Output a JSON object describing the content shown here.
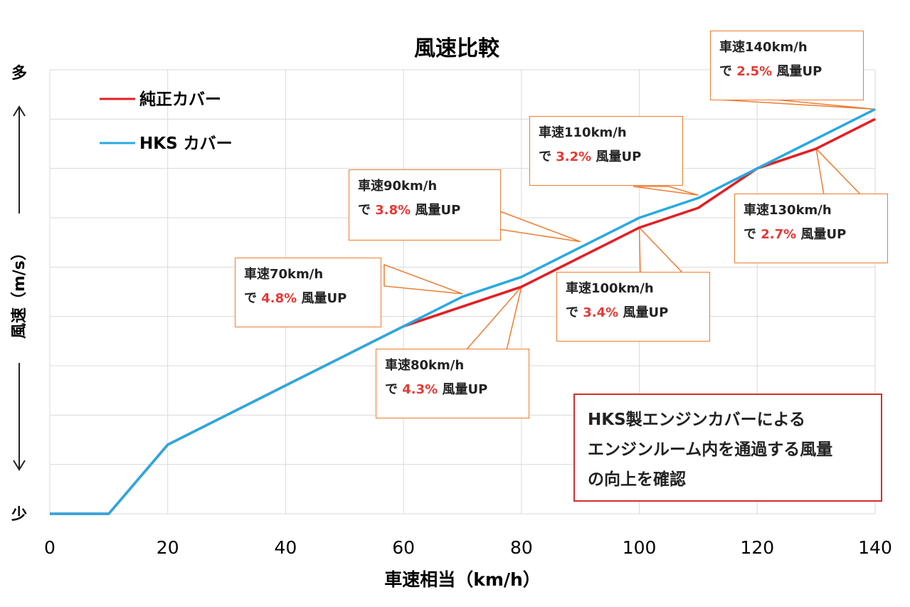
{
  "chart_data": {
    "type": "line",
    "title": "風速比較",
    "xlabel": "車速相当（km/h）",
    "ylabel": "風速（m/s）",
    "y_top_label": "多",
    "y_bottom_label": "少",
    "xlim": [
      0,
      140
    ],
    "x_ticks": [
      0,
      20,
      40,
      60,
      80,
      100,
      120,
      140
    ],
    "ylim": [
      0,
      9
    ],
    "grid": true,
    "legend_position": "top-left",
    "series": [
      {
        "name": "純正カバー",
        "color": "#e31e24",
        "x": [
          0,
          10,
          20,
          30,
          40,
          50,
          60,
          70,
          80,
          90,
          100,
          110,
          120,
          130,
          140
        ],
        "y": [
          0,
          0,
          1.4,
          2.0,
          2.6,
          3.2,
          3.8,
          4.2,
          4.6,
          5.2,
          5.8,
          6.2,
          7.0,
          7.4,
          8.0
        ]
      },
      {
        "name": "HKS カバー",
        "color": "#29a9e1",
        "x": [
          0,
          10,
          20,
          30,
          40,
          50,
          60,
          70,
          80,
          90,
          100,
          110,
          120,
          130,
          140
        ],
        "y": [
          0,
          0,
          1.4,
          2.0,
          2.6,
          3.2,
          3.8,
          4.4,
          4.8,
          5.4,
          6.0,
          6.4,
          7.0,
          7.6,
          8.2
        ]
      }
    ],
    "annotations": [
      {
        "line1": "車速70km/h",
        "prefix": "で ",
        "pct": "4.8%",
        "suffix": " 風量UP"
      },
      {
        "line1": "車速80km/h",
        "prefix": "で ",
        "pct": "4.3%",
        "suffix": " 風量UP"
      },
      {
        "line1": "車速90km/h",
        "prefix": "で ",
        "pct": "3.8%",
        "suffix": " 風量UP"
      },
      {
        "line1": "車速100km/h",
        "prefix": "で ",
        "pct": "3.4%",
        "suffix": " 風量UP"
      },
      {
        "line1": "車速110km/h",
        "prefix": "で ",
        "pct": "3.2%",
        "suffix": " 風量UP"
      },
      {
        "line1": "車速130km/h",
        "prefix": "で ",
        "pct": "2.7%",
        "suffix": " 風量UP"
      },
      {
        "line1": "車速140km/h",
        "prefix": "で ",
        "pct": "2.5%",
        "suffix": " 風量UP"
      }
    ],
    "note_lines": [
      "HKS製エンジンカバーによる",
      "エンジンルーム内を通過する風量",
      "の向上を確認"
    ]
  }
}
